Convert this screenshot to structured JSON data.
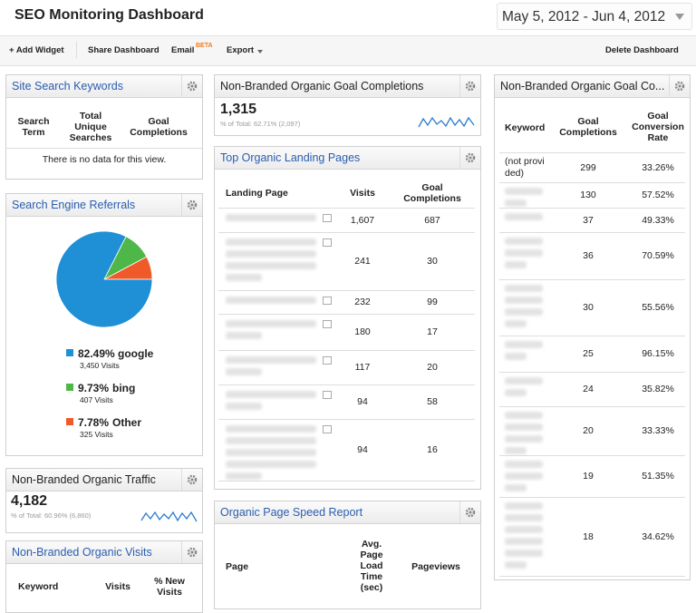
{
  "header": {
    "title": "SEO Monitoring Dashboard",
    "date_range": "May 5, 2012 - Jun 4, 2012"
  },
  "toolbar": {
    "add_widget": "+ Add Widget",
    "share": "Share Dashboard",
    "email": "Email",
    "beta": "BETA",
    "export": "Export",
    "delete": "Delete Dashboard"
  },
  "widgets": {
    "site_search": {
      "title": "Site Search Keywords",
      "columns": [
        "Search Term",
        "Total Unique Searches",
        "Goal Completions"
      ],
      "empty": "There is no data for this view."
    },
    "referrals": {
      "title": "Search Engine Referrals",
      "chart": {
        "type": "pie",
        "series": [
          {
            "name": "google",
            "value": 82.49,
            "value_label": "82.49%",
            "visits": "3,450 Visits",
            "color": "#1f8fd6"
          },
          {
            "name": "bing",
            "value": 9.73,
            "value_label": "9.73%",
            "visits": "407 Visits",
            "color": "#4db848"
          },
          {
            "name": "Other",
            "value": 7.78,
            "value_label": "7.78%",
            "visits": "325 Visits",
            "color": "#f05a28"
          }
        ]
      }
    },
    "organic_traffic": {
      "title": "Non-Branded Organic Traffic",
      "value": "4,182",
      "sub": "% of Total: 60.96% (6,860)"
    },
    "organic_visits": {
      "title": "Non-Branded Organic Visits",
      "columns": [
        "Keyword",
        "Visits",
        "% New Visits"
      ]
    },
    "goal_completions": {
      "title": "Non-Branded Organic Goal Completions",
      "value": "1,315",
      "sub": "% of Total: 62.71% (2,097)"
    },
    "landing_pages": {
      "title": "Top Organic Landing Pages",
      "columns": [
        "Landing Page",
        "Visits",
        "Goal Completions"
      ],
      "rows": [
        [
          "1,607",
          "687"
        ],
        [
          "241",
          "30"
        ],
        [
          "232",
          "99"
        ],
        [
          "180",
          "17"
        ],
        [
          "117",
          "20"
        ],
        [
          "94",
          "58"
        ],
        [
          "94",
          "16"
        ]
      ]
    },
    "page_speed": {
      "title": "Organic Page Speed Report",
      "columns": [
        "Page",
        "Avg. Page Load Time (sec)",
        "Pageviews"
      ]
    },
    "keywords": {
      "title": "Non-Branded Organic Goal Co...",
      "columns": [
        "Keyword",
        "Goal Completions",
        "Goal Conversion Rate"
      ],
      "rows": [
        {
          "keyword": "(not provided)",
          "goal_completions": "299",
          "rate": "33.26%"
        },
        {
          "goal_completions": "130",
          "rate": "57.52%"
        },
        {
          "goal_completions": "37",
          "rate": "49.33%"
        },
        {
          "goal_completions": "36",
          "rate": "70.59%"
        },
        {
          "goal_completions": "30",
          "rate": "55.56%"
        },
        {
          "goal_completions": "25",
          "rate": "96.15%"
        },
        {
          "goal_completions": "24",
          "rate": "35.82%"
        },
        {
          "goal_completions": "20",
          "rate": "33.33%"
        },
        {
          "goal_completions": "19",
          "rate": "51.35%"
        },
        {
          "goal_completions": "18",
          "rate": "34.62%"
        }
      ]
    }
  }
}
